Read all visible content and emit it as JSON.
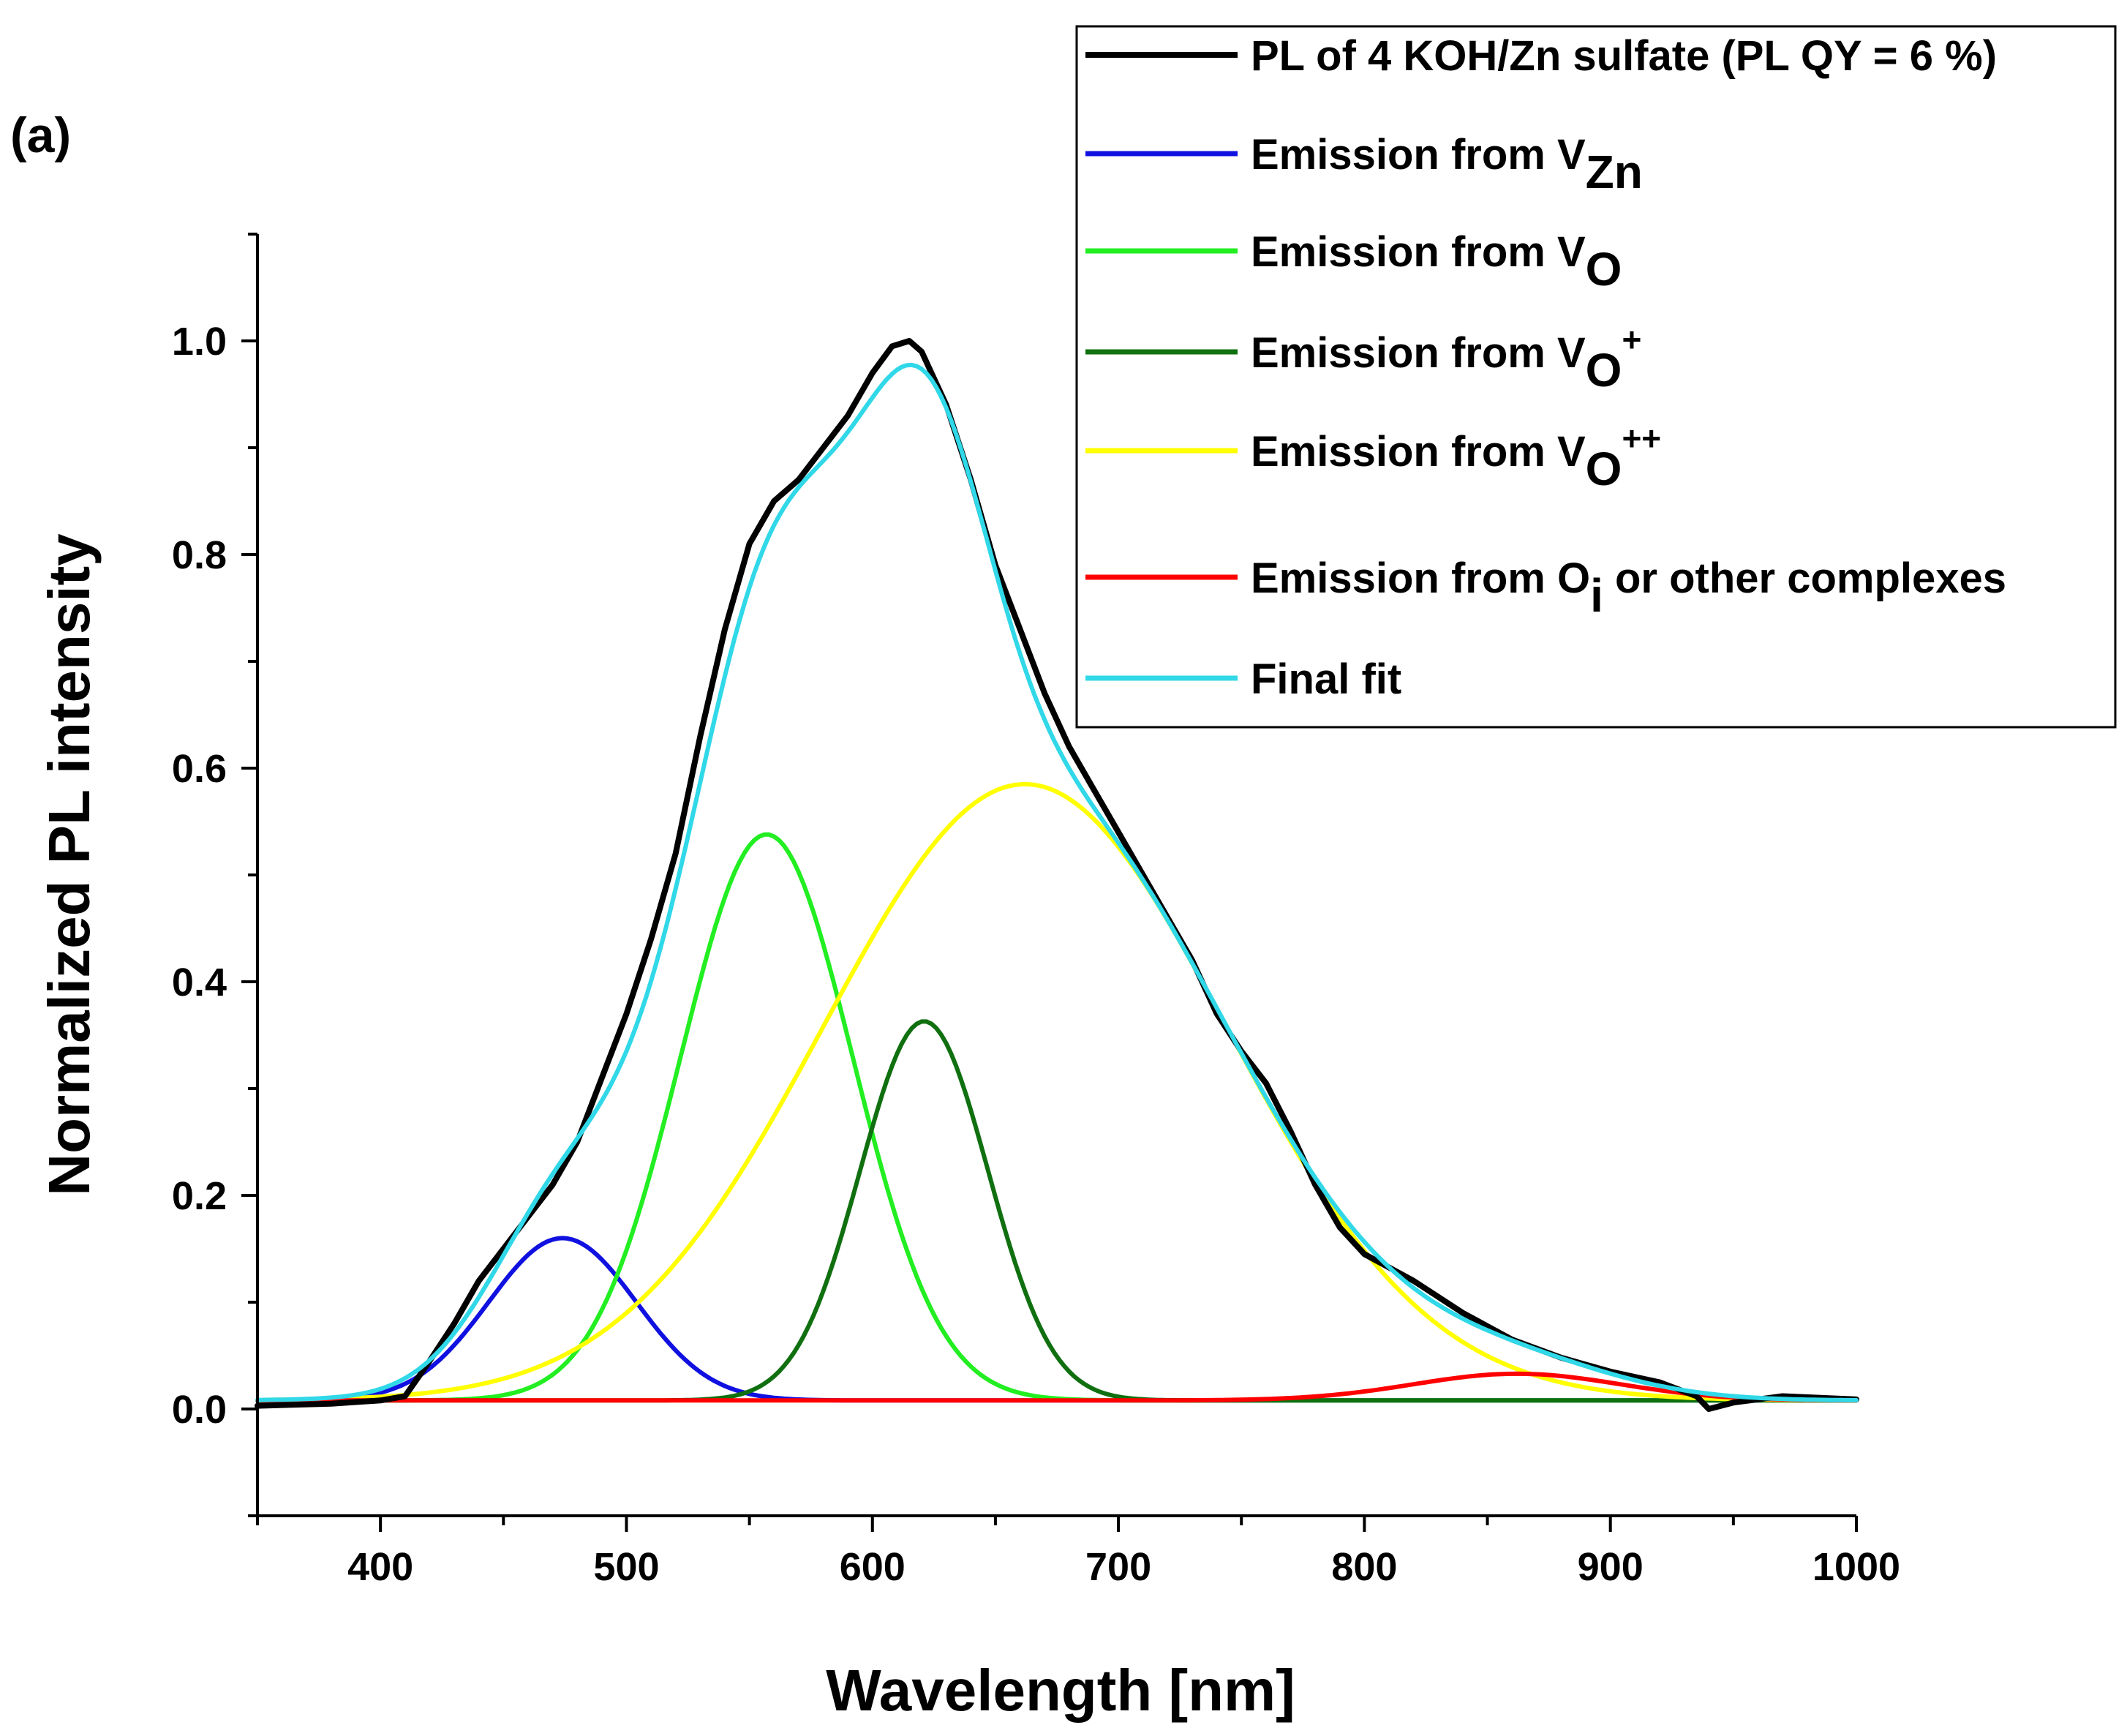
{
  "panel_label": "(a)",
  "chart_data": {
    "type": "line",
    "title": "",
    "xlabel": "Wavelength [nm]",
    "ylabel": "Normalized PL intensity",
    "xlim": [
      350,
      1000
    ],
    "ylim": [
      -0.1,
      1.1
    ],
    "xticks": [
      400,
      500,
      600,
      700,
      800,
      900,
      1000
    ],
    "xtick_labels": [
      "400",
      "500",
      "600",
      "700",
      "800",
      "900",
      "1000"
    ],
    "yticks": [
      0.0,
      0.2,
      0.4,
      0.6,
      0.8,
      1.0
    ],
    "ytick_labels": [
      "0.0",
      "0.2",
      "0.4",
      "0.6",
      "0.8",
      "1.0"
    ],
    "legend_position": "top-right",
    "baseline": 0.008,
    "series": [
      {
        "name": "PL of 4 KOH/Zn sulfate (PL QY = 6 %)",
        "label_main": "PL of 4 KOH/Zn sulfate (PL QY = 6 %)",
        "label_sub": "",
        "label_sup": "",
        "color": "#000000",
        "kind": "measured",
        "points": [
          [
            350,
            0.003
          ],
          [
            380,
            0.005
          ],
          [
            400,
            0.008
          ],
          [
            410,
            0.012
          ],
          [
            420,
            0.045
          ],
          [
            430,
            0.08
          ],
          [
            440,
            0.12
          ],
          [
            450,
            0.15
          ],
          [
            460,
            0.18
          ],
          [
            470,
            0.21
          ],
          [
            480,
            0.25
          ],
          [
            490,
            0.31
          ],
          [
            500,
            0.37
          ],
          [
            510,
            0.44
          ],
          [
            520,
            0.52
          ],
          [
            530,
            0.63
          ],
          [
            540,
            0.73
          ],
          [
            550,
            0.81
          ],
          [
            560,
            0.85
          ],
          [
            570,
            0.87
          ],
          [
            580,
            0.9
          ],
          [
            590,
            0.93
          ],
          [
            600,
            0.97
          ],
          [
            608,
            0.995
          ],
          [
            615,
            1.0
          ],
          [
            620,
            0.99
          ],
          [
            630,
            0.94
          ],
          [
            640,
            0.87
          ],
          [
            650,
            0.79
          ],
          [
            660,
            0.73
          ],
          [
            670,
            0.67
          ],
          [
            680,
            0.62
          ],
          [
            690,
            0.58
          ],
          [
            700,
            0.54
          ],
          [
            710,
            0.5
          ],
          [
            720,
            0.46
          ],
          [
            730,
            0.42
          ],
          [
            740,
            0.37
          ],
          [
            750,
            0.335
          ],
          [
            760,
            0.305
          ],
          [
            770,
            0.26
          ],
          [
            780,
            0.21
          ],
          [
            790,
            0.17
          ],
          [
            800,
            0.145
          ],
          [
            820,
            0.12
          ],
          [
            840,
            0.09
          ],
          [
            860,
            0.065
          ],
          [
            880,
            0.048
          ],
          [
            900,
            0.035
          ],
          [
            920,
            0.025
          ],
          [
            935,
            0.012
          ],
          [
            940,
            0.0
          ],
          [
            950,
            0.006
          ],
          [
            970,
            0.012
          ],
          [
            1000,
            0.009
          ]
        ]
      },
      {
        "name": "Emission from VZn",
        "label_main": "Emission from V",
        "label_sub": "Zn",
        "label_sup": "",
        "color": "#1010e0",
        "kind": "gauss",
        "center": 474,
        "amplitude": 0.152,
        "sigma": 30
      },
      {
        "name": "Emission from VO",
        "label_main": "Emission from V",
        "label_sub": "O",
        "label_sup": "",
        "color": "#22ee22",
        "kind": "gauss",
        "center": 557,
        "amplitude": 0.53,
        "sigma": 35
      },
      {
        "name": "Emission from VO+",
        "label_main": "Emission from V",
        "label_sub": "O",
        "label_sup": "+",
        "color": "#107010",
        "kind": "gauss",
        "center": 621,
        "amplitude": 0.355,
        "sigma": 26
      },
      {
        "name": "Emission from VO++",
        "label_main": "Emission from V",
        "label_sub": "O",
        "label_sup": "++",
        "color": "#ffff00",
        "kind": "gauss",
        "center": 662,
        "amplitude": 0.577,
        "sigma": 82
      },
      {
        "name": "Emission from Oi or other complexes",
        "label_main": "Emission from O",
        "label_sub": "i",
        "label_tail": " or other complexes",
        "label_sup": "",
        "color": "#ff0000",
        "kind": "gauss",
        "center": 862,
        "amplitude": 0.025,
        "sigma": 42
      },
      {
        "name": "Final fit",
        "label_main": "Final fit",
        "label_sub": "",
        "label_sup": "",
        "color": "#30d8e8",
        "kind": "sum"
      }
    ]
  }
}
